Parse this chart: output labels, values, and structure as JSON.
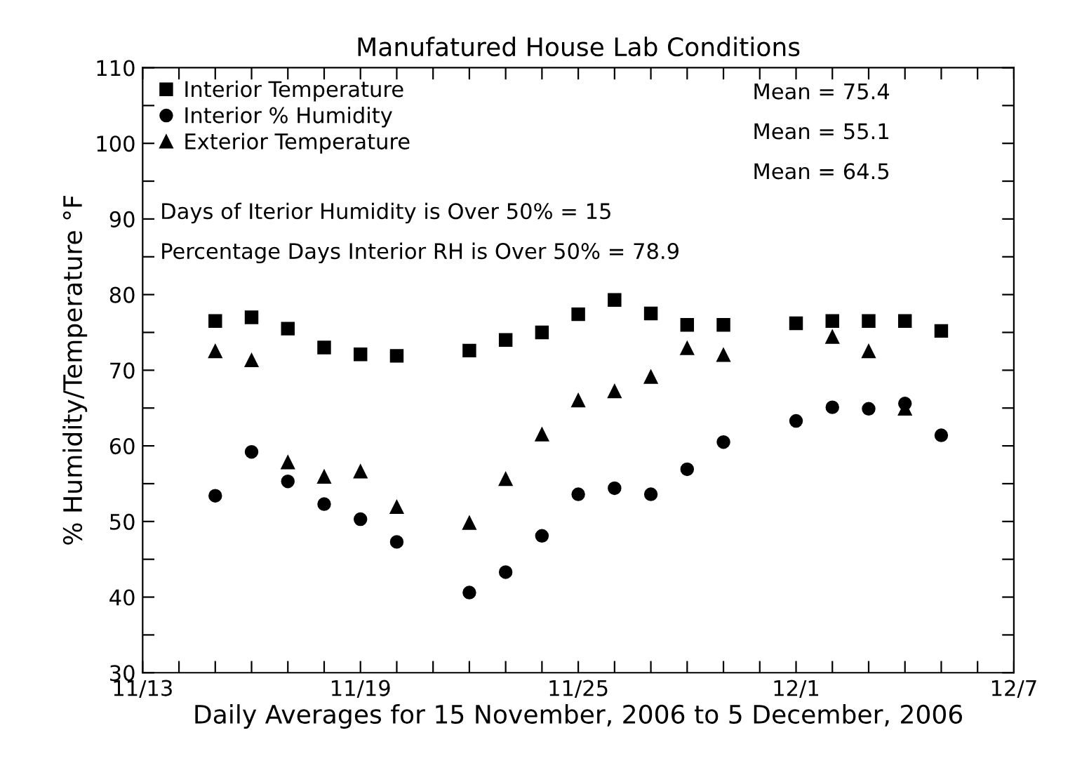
{
  "chart_data": {
    "type": "scatter",
    "title": "Manufatured House Lab Conditions",
    "xlabel": "Daily Averages for 15 November, 2006 to 5 December, 2006",
    "ylabel": "% Humidity/Temperature °F",
    "x": [
      "2006-11-15",
      "2006-11-16",
      "2006-11-17",
      "2006-11-18",
      "2006-11-19",
      "2006-11-20",
      "2006-11-22",
      "2006-11-23",
      "2006-11-24",
      "2006-11-25",
      "2006-11-26",
      "2006-11-27",
      "2006-11-28",
      "2006-11-29",
      "2006-12-01",
      "2006-12-02",
      "2006-12-03",
      "2006-12-04",
      "2006-12-05"
    ],
    "series": [
      {
        "name": "Interior Temperature",
        "color": "#000000",
        "marker": "square",
        "values": [
          76.5,
          77.0,
          75.5,
          73.0,
          72.1,
          71.9,
          72.6,
          74.0,
          75.0,
          77.4,
          79.3,
          77.5,
          76.0,
          76.0,
          76.2,
          76.5,
          76.5,
          76.5,
          75.2
        ]
      },
      {
        "name": "Interior % Humidity",
        "color": "#000000",
        "marker": "circle",
        "values": [
          53.4,
          59.2,
          55.3,
          52.3,
          50.3,
          47.3,
          40.6,
          43.3,
          48.1,
          53.6,
          54.4,
          53.6,
          56.9,
          60.5,
          63.3,
          65.1,
          64.9,
          65.6,
          61.4
        ]
      },
      {
        "name": "Exterior Temperature",
        "color": "#000000",
        "marker": "triangle",
        "values": [
          72.5,
          71.3,
          57.8,
          55.9,
          56.6,
          51.9,
          49.8,
          55.6,
          61.5,
          66.0,
          67.2,
          69.1,
          72.9,
          72.0,
          null,
          74.4,
          72.5,
          64.9,
          null
        ]
      }
    ],
    "annotations": [
      "Mean = 75.4",
      "Mean = 55.1",
      "Mean = 64.5",
      "Days of Iterior Humidity is Over 50% = 15",
      "Percentage Days Interior RH is Over 50% = 78.9"
    ],
    "xlim": [
      "2006-11-13",
      "2006-12-07"
    ],
    "xticks": [
      {
        "value": "2006-11-13",
        "label": "11/13"
      },
      {
        "value": "2006-11-14",
        "label": null
      },
      {
        "value": "2006-11-15",
        "label": null
      },
      {
        "value": "2006-11-16",
        "label": null
      },
      {
        "value": "2006-11-17",
        "label": null
      },
      {
        "value": "2006-11-18",
        "label": null
      },
      {
        "value": "2006-11-19",
        "label": "11/19"
      },
      {
        "value": "2006-11-20",
        "label": null
      },
      {
        "value": "2006-11-21",
        "label": null
      },
      {
        "value": "2006-11-22",
        "label": null
      },
      {
        "value": "2006-11-23",
        "label": null
      },
      {
        "value": "2006-11-24",
        "label": null
      },
      {
        "value": "2006-11-25",
        "label": "11/25"
      },
      {
        "value": "2006-11-26",
        "label": null
      },
      {
        "value": "2006-11-27",
        "label": null
      },
      {
        "value": "2006-11-28",
        "label": null
      },
      {
        "value": "2006-11-29",
        "label": null
      },
      {
        "value": "2006-11-30",
        "label": null
      },
      {
        "value": "2006-12-01",
        "label": "12/1"
      },
      {
        "value": "2006-12-02",
        "label": null
      },
      {
        "value": "2006-12-03",
        "label": null
      },
      {
        "value": "2006-12-04",
        "label": null
      },
      {
        "value": "2006-12-05",
        "label": null
      },
      {
        "value": "2006-12-06",
        "label": null
      },
      {
        "value": "2006-12-07",
        "label": "12/7"
      }
    ],
    "ylim": [
      30,
      110
    ],
    "yticks": [
      30,
      {
        "value": 35,
        "label": null
      },
      40,
      {
        "value": 45,
        "label": null
      },
      50,
      {
        "value": 55,
        "label": null
      },
      60,
      {
        "value": 65,
        "label": null
      },
      70,
      {
        "value": 75,
        "label": null
      },
      80,
      {
        "value": 85,
        "label": null
      },
      90,
      {
        "value": 95,
        "label": null
      },
      100,
      {
        "value": 105,
        "label": null
      },
      110
    ],
    "grid": false,
    "legend": "top left"
  }
}
